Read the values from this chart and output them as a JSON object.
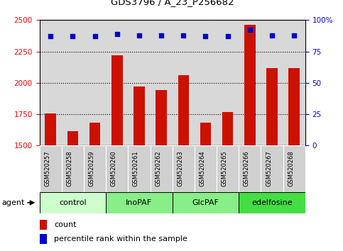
{
  "title": "GDS3796 / A_23_P256682",
  "samples": [
    "GSM520257",
    "GSM520258",
    "GSM520259",
    "GSM520260",
    "GSM520261",
    "GSM520262",
    "GSM520263",
    "GSM520264",
    "GSM520265",
    "GSM520266",
    "GSM520267",
    "GSM520268"
  ],
  "bar_values": [
    1755,
    1615,
    1680,
    2220,
    1970,
    1945,
    2060,
    1680,
    1770,
    2460,
    2120,
    2115
  ],
  "percentile_values": [
    87,
    87,
    87,
    89,
    88,
    88,
    88,
    87,
    87,
    92,
    88,
    88
  ],
  "bar_color": "#cc1100",
  "dot_color": "#0000cc",
  "ylim_left": [
    1500,
    2500
  ],
  "ylim_right": [
    0,
    100
  ],
  "yticks_left": [
    1500,
    1750,
    2000,
    2250,
    2500
  ],
  "yticks_right": [
    0,
    25,
    50,
    75,
    100
  ],
  "groups": [
    {
      "label": "control",
      "start": 0,
      "end": 3,
      "color": "#ccffcc"
    },
    {
      "label": "InoPAF",
      "start": 3,
      "end": 6,
      "color": "#88ee88"
    },
    {
      "label": "GlcPAF",
      "start": 6,
      "end": 9,
      "color": "#88ee88"
    },
    {
      "label": "edelfosine",
      "start": 9,
      "end": 12,
      "color": "#44dd44"
    }
  ],
  "agent_label": "agent",
  "legend_count_label": "count",
  "legend_pct_label": "percentile rank within the sample",
  "bar_width": 0.5,
  "plot_bg": "#d8d8d8",
  "cell_bg": "#c8c8c8",
  "background_color": "#ffffff"
}
